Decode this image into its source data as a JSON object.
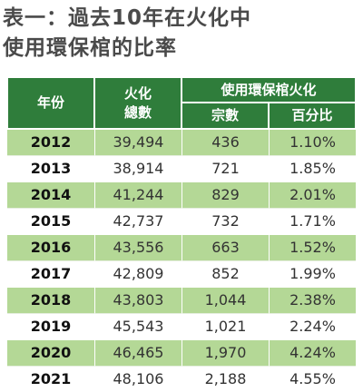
{
  "title": {
    "line1": "表一：過去10年在火化中",
    "line2": "使用環保棺的比率"
  },
  "table": {
    "headers": {
      "year": "年份",
      "cremation_total": "火化\n總數",
      "eco_group": "使用環保棺火化",
      "count": "宗數",
      "percent": "百分比"
    },
    "rows": [
      {
        "year": "2012",
        "total": "39,494",
        "count": "436",
        "percent": "1.10%"
      },
      {
        "year": "2013",
        "total": "38,914",
        "count": "721",
        "percent": "1.85%"
      },
      {
        "year": "2014",
        "total": "41,244",
        "count": "829",
        "percent": "2.01%"
      },
      {
        "year": "2015",
        "total": "42,737",
        "count": "732",
        "percent": "1.71%"
      },
      {
        "year": "2016",
        "total": "43,556",
        "count": "663",
        "percent": "1.52%"
      },
      {
        "year": "2017",
        "total": "42,809",
        "count": "852",
        "percent": "1.99%"
      },
      {
        "year": "2018",
        "total": "43,803",
        "count": "1,044",
        "percent": "2.38%"
      },
      {
        "year": "2019",
        "total": "45,543",
        "count": "1,021",
        "percent": "2.24%"
      },
      {
        "year": "2020",
        "total": "46,465",
        "count": "1,970",
        "percent": "4.24%"
      },
      {
        "year": "2021",
        "total": "48,106",
        "count": "2,188",
        "percent": "4.55%"
      }
    ]
  },
  "colors": {
    "header_bg": "#2f7d3b",
    "row_highlight": "#b4d896",
    "title_text": "#4a4a4a"
  }
}
